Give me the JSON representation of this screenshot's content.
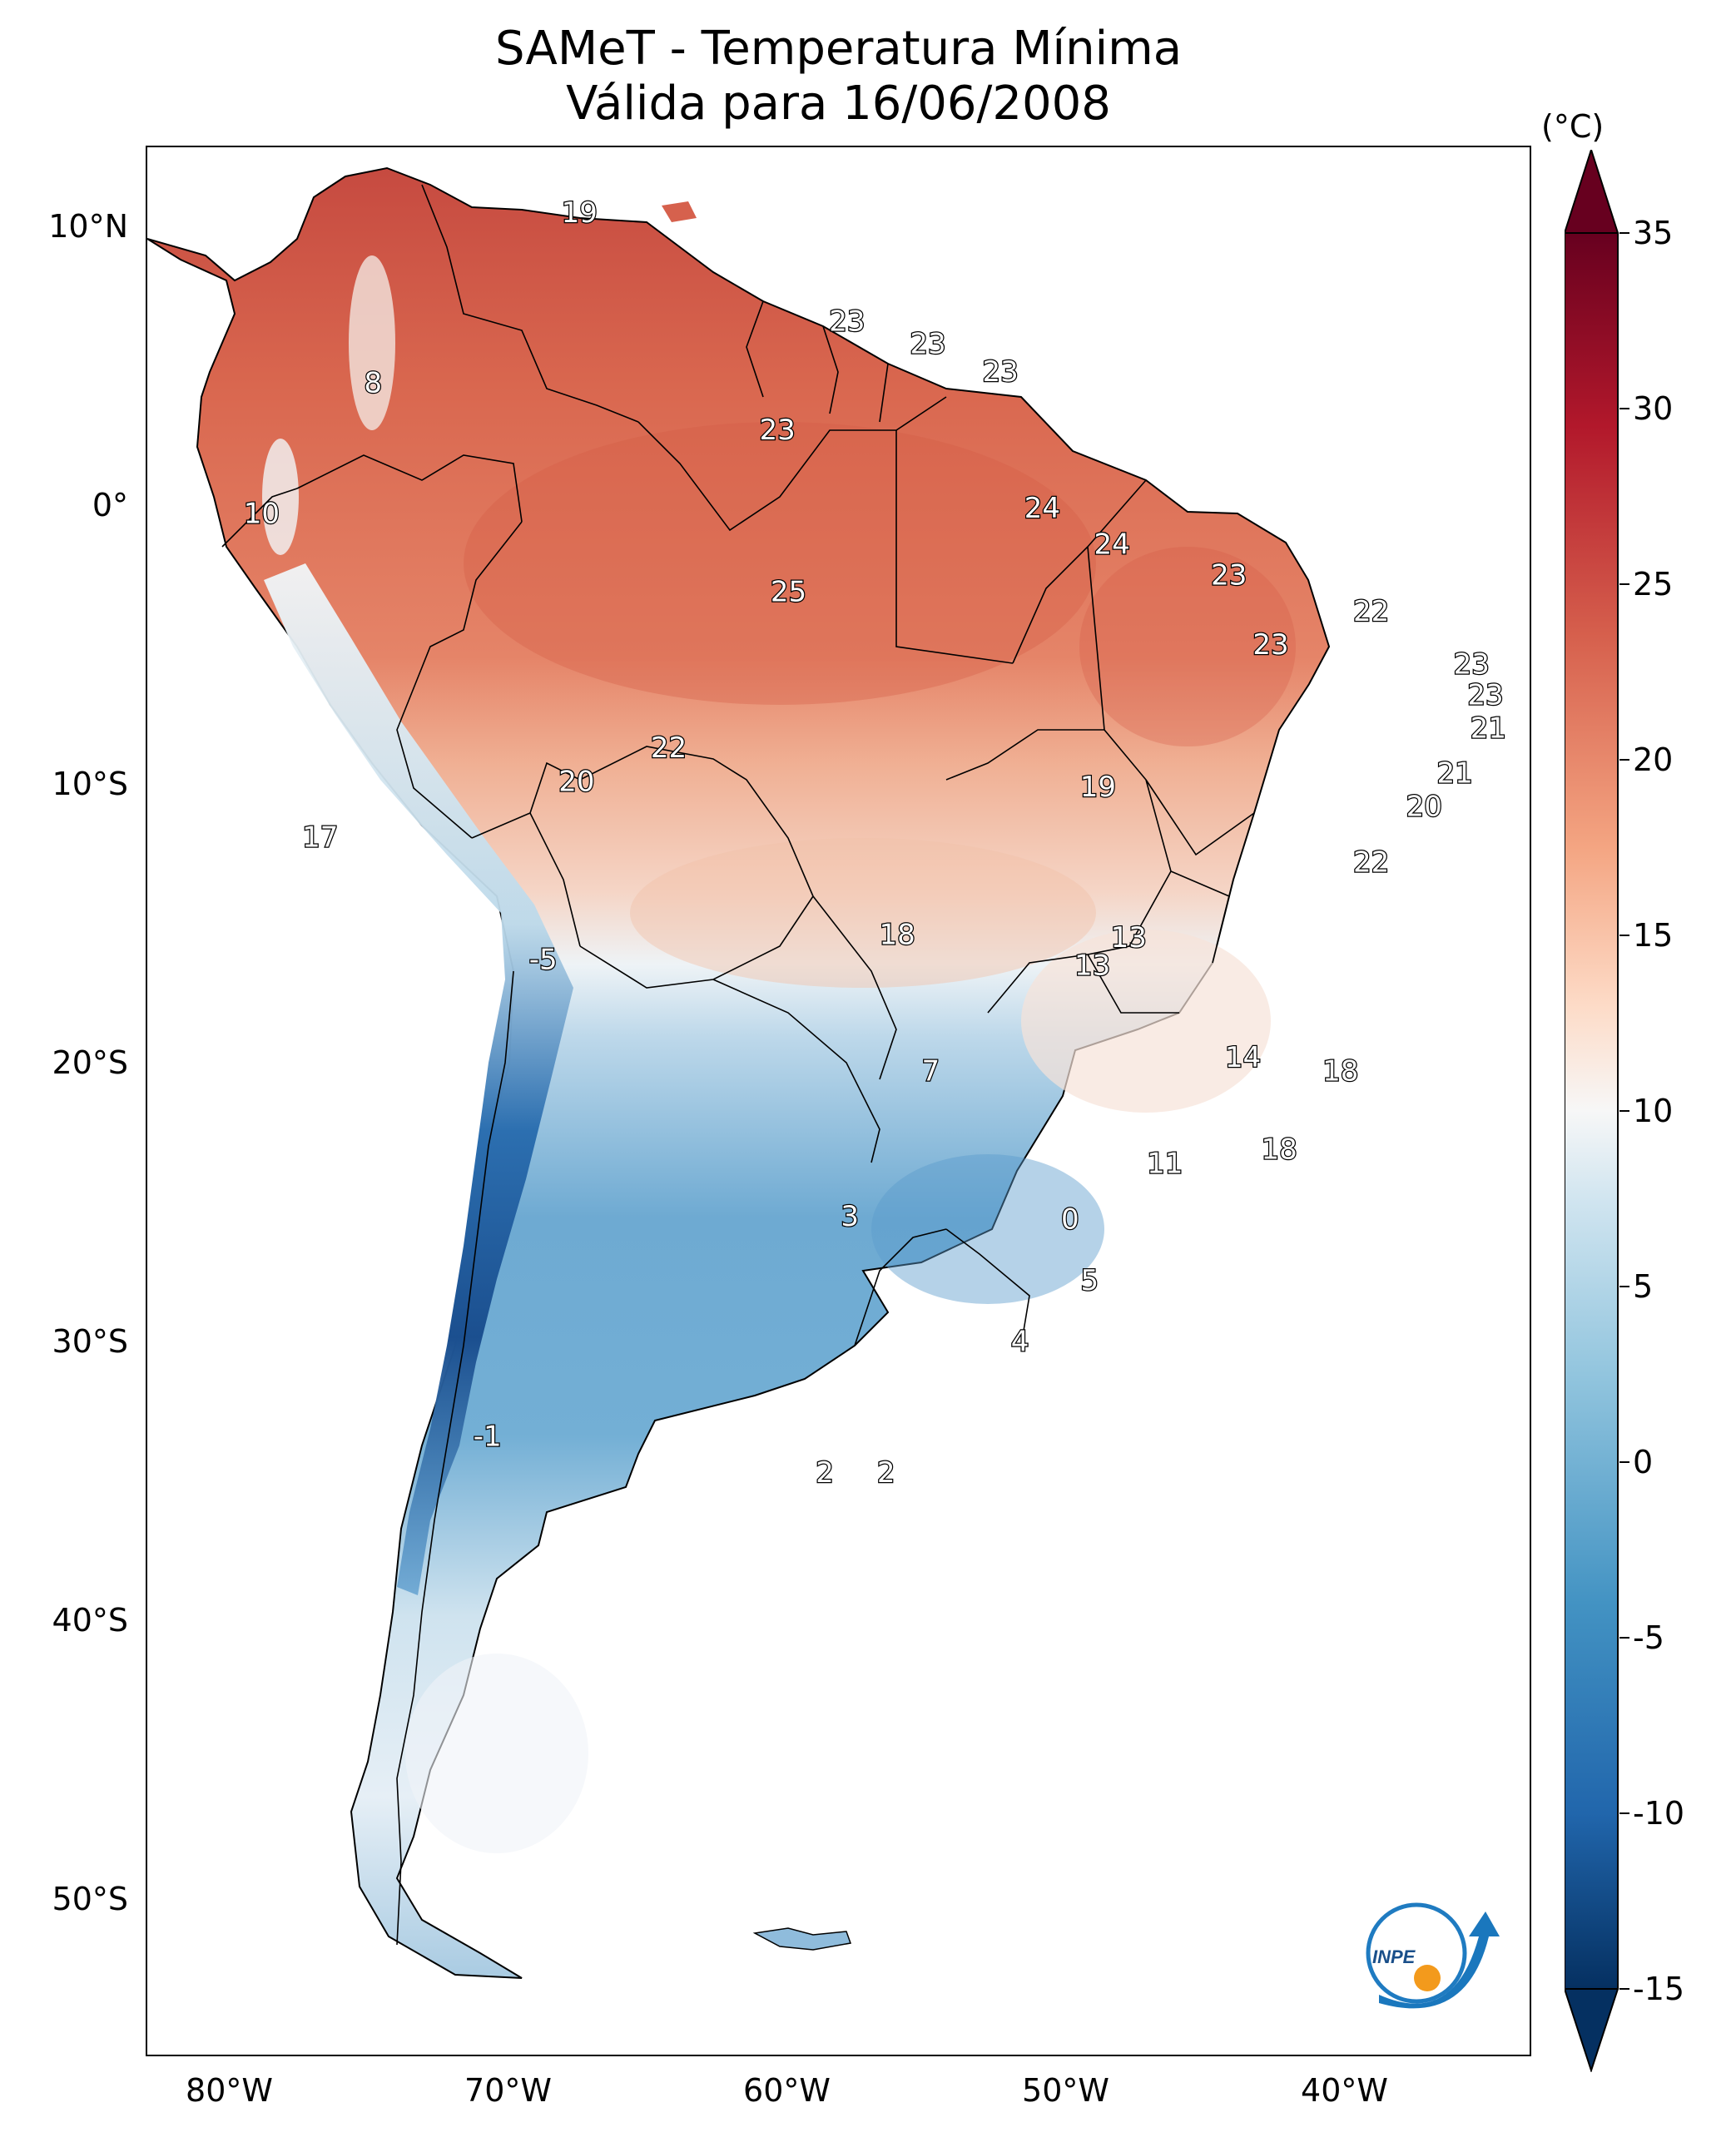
{
  "title_line1": "SAMeT - Temperatura Mínima",
  "title_line2": "Válida para 16/06/2008",
  "lat_ticks": [
    "10°N",
    "0°",
    "10°S",
    "20°S",
    "30°S",
    "40°S",
    "50°S"
  ],
  "lat_values": [
    10,
    0,
    -10,
    -20,
    -30,
    -40,
    -50
  ],
  "lon_ticks": [
    "80°W",
    "70°W",
    "60°W",
    "50°W",
    "40°W"
  ],
  "lon_values": [
    -80,
    -70,
    -60,
    -50,
    -40
  ],
  "colorbar": {
    "unit": "(°C)",
    "tick_labels": [
      "35",
      "30",
      "25",
      "20",
      "15",
      "10",
      "5",
      "0",
      "-5",
      "-10",
      "-15"
    ],
    "tick_values": [
      35,
      30,
      25,
      20,
      15,
      10,
      5,
      0,
      -5,
      -10,
      -15
    ],
    "range": [
      -15,
      35
    ],
    "colormap": "RdBu_r",
    "colors": [
      "#053061",
      "#2166ac",
      "#4393c3",
      "#92c5de",
      "#d1e5f0",
      "#f7f7f7",
      "#fddbc7",
      "#f4a582",
      "#d6604d",
      "#b2182b",
      "#67001f"
    ]
  },
  "annotations": [
    {
      "label": "19",
      "lon": -67.5,
      "lat": 10.5
    },
    {
      "label": "23",
      "lon": -57.9,
      "lat": 6.6
    },
    {
      "label": "23",
      "lon": -55.0,
      "lat": 5.8
    },
    {
      "label": "23",
      "lon": -52.4,
      "lat": 4.8
    },
    {
      "label": "8",
      "lon": -74.9,
      "lat": 4.4
    },
    {
      "label": "23",
      "lon": -60.4,
      "lat": 2.7
    },
    {
      "label": "24",
      "lon": -50.9,
      "lat": -0.1
    },
    {
      "label": "10",
      "lon": -78.9,
      "lat": -0.3
    },
    {
      "label": "24",
      "lon": -48.4,
      "lat": -1.4
    },
    {
      "label": "23",
      "lon": -44.2,
      "lat": -2.5
    },
    {
      "label": "25",
      "lon": -60.0,
      "lat": -3.1
    },
    {
      "label": "22",
      "lon": -39.1,
      "lat": -3.8
    },
    {
      "label": "23",
      "lon": -42.7,
      "lat": -5.0
    },
    {
      "label": "23",
      "lon": -35.5,
      "lat": -5.7
    },
    {
      "label": "23",
      "lon": -35.0,
      "lat": -6.8
    },
    {
      "label": "21",
      "lon": -34.9,
      "lat": -8.0
    },
    {
      "label": "22",
      "lon": -64.3,
      "lat": -8.7
    },
    {
      "label": "21",
      "lon": -36.1,
      "lat": -9.6
    },
    {
      "label": "20",
      "lon": -67.6,
      "lat": -9.9
    },
    {
      "label": "19",
      "lon": -48.9,
      "lat": -10.1
    },
    {
      "label": "20",
      "lon": -37.2,
      "lat": -10.8
    },
    {
      "label": "22",
      "lon": -39.1,
      "lat": -12.8
    },
    {
      "label": "17",
      "lon": -76.8,
      "lat": -11.9
    },
    {
      "label": "18",
      "lon": -56.1,
      "lat": -15.4
    },
    {
      "label": "13",
      "lon": -47.8,
      "lat": -15.5
    },
    {
      "label": "13",
      "lon": -49.1,
      "lat": -16.5
    },
    {
      "label": "-5",
      "lon": -68.8,
      "lat": -16.3
    },
    {
      "label": "7",
      "lon": -54.9,
      "lat": -20.3
    },
    {
      "label": "14",
      "lon": -43.7,
      "lat": -19.8
    },
    {
      "label": "18",
      "lon": -40.2,
      "lat": -20.3
    },
    {
      "label": "18",
      "lon": -42.4,
      "lat": -23.1
    },
    {
      "label": "11",
      "lon": -46.5,
      "lat": -23.6
    },
    {
      "label": "3",
      "lon": -57.8,
      "lat": -25.5
    },
    {
      "label": "0",
      "lon": -49.9,
      "lat": -25.6
    },
    {
      "label": "5",
      "lon": -49.2,
      "lat": -27.8
    },
    {
      "label": "4",
      "lon": -51.7,
      "lat": -30.0
    },
    {
      "label": "-1",
      "lon": -70.8,
      "lat": -33.4
    },
    {
      "label": "2",
      "lon": -58.7,
      "lat": -34.7
    },
    {
      "label": "2",
      "lon": -56.5,
      "lat": -34.7
    }
  ],
  "logo": {
    "text": "INPE"
  }
}
